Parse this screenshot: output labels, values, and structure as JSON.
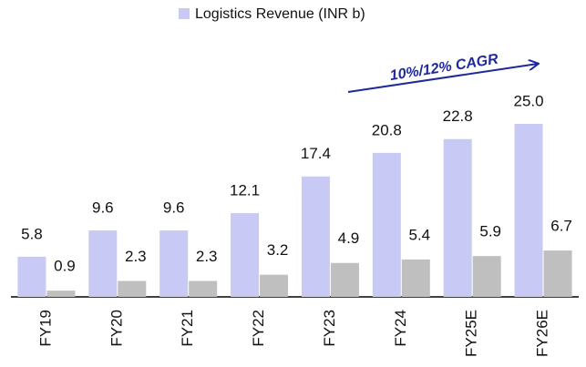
{
  "chart_data": {
    "type": "bar",
    "categories": [
      "FY19",
      "FY20",
      "FY21",
      "FY22",
      "FY23",
      "FY24",
      "FY25E",
      "FY26E"
    ],
    "series": [
      {
        "name": "Logistics Revenue (INR b)",
        "color": "#c9c9f5",
        "values": [
          5.8,
          9.6,
          9.6,
          12.1,
          17.4,
          20.8,
          22.8,
          25.0
        ],
        "value_labels": [
          "5.8",
          "9.6",
          "9.6",
          "12.1",
          "17.4",
          "20.8",
          "22.8",
          "25.0"
        ]
      },
      {
        "color": "#bfbfbf",
        "values": [
          0.9,
          2.3,
          2.3,
          3.2,
          4.9,
          5.4,
          5.9,
          6.7
        ]
      }
    ],
    "annotation": "10%/12% CAGR"
  }
}
